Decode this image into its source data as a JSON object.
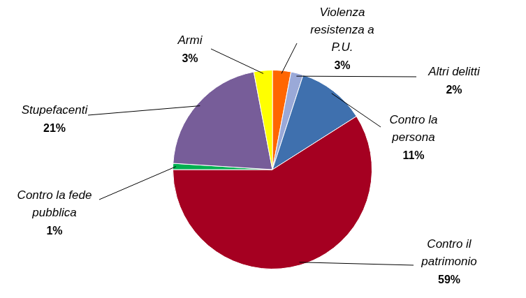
{
  "chart_data": {
    "type": "pie",
    "categories": [
      "Violenza resistenza a P.U.",
      "Altri delitti",
      "Contro la persona",
      "Contro il patrimonio",
      "Contro la fede pubblica",
      "Stupefacenti",
      "Armi"
    ],
    "values": [
      3,
      2,
      11,
      59,
      1,
      21,
      3
    ],
    "value_labels": [
      "3%",
      "2%",
      "11%",
      "59%",
      "1%",
      "21%",
      "3%"
    ],
    "colors": [
      "#ff6600",
      "#9aa9d8",
      "#3f70ae",
      "#a50021",
      "#00b050",
      "#775d99",
      "#ffff00"
    ],
    "data_labels": true,
    "legend": false
  }
}
